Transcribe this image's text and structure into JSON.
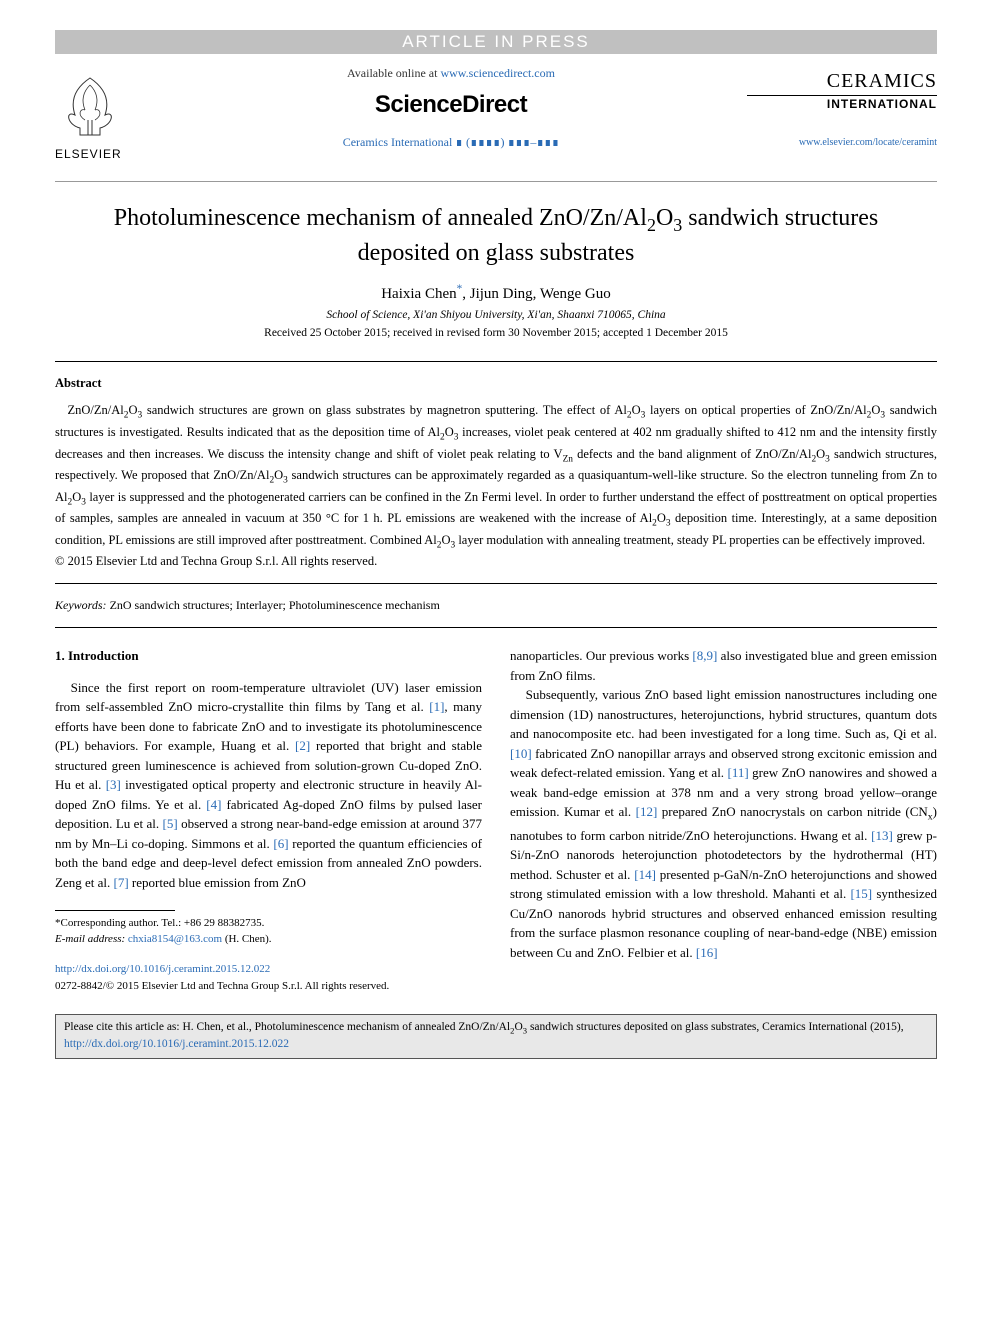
{
  "banner": {
    "text": "ARTICLE IN PRESS"
  },
  "header": {
    "available_prefix": "Available online at ",
    "available_url": "www.sciencedirect.com",
    "sd_logo": "ScienceDirect",
    "journal_ref_text": "Ceramics International ∎ (∎∎∎∎) ∎∎∎–∎∎∎",
    "elsevier_label": "ELSEVIER",
    "journal_title": "CERAMICS",
    "journal_subtitle": "INTERNATIONAL",
    "journal_homepage": "www.elsevier.com/locate/ceramint"
  },
  "article": {
    "title_html": "Photoluminescence mechanism of annealed ZnO/Zn/Al<sub>2</sub>O<sub>3</sub> sandwich structures deposited on glass substrates",
    "authors_html": "Haixia Chen<sup class=\"corr-star\">*</sup>, Jijun Ding, Wenge Guo",
    "affiliation": "School of Science, Xi'an Shiyou University, Xi'an, Shaanxi 710065, China",
    "dates": "Received 25 October 2015; received in revised form 30 November 2015; accepted 1 December 2015"
  },
  "abstract": {
    "heading": "Abstract",
    "body_html": "ZnO/Zn/Al<sub>2</sub>O<sub>3</sub> sandwich structures are grown on glass substrates by magnetron sputtering. The effect of Al<sub>2</sub>O<sub>3</sub> layers on optical properties of ZnO/Zn/Al<sub>2</sub>O<sub>3</sub> sandwich structures is investigated. Results indicated that as the deposition time of Al<sub>2</sub>O<sub>3</sub> increases, violet peak centered at 402 nm gradually shifted to 412 nm and the intensity firstly decreases and then increases. We discuss the intensity change and shift of violet peak relating to V<sub>Zn</sub> defects and the band alignment of ZnO/Zn/Al<sub>2</sub>O<sub>3</sub> sandwich structures, respectively. We proposed that ZnO/Zn/Al<sub>2</sub>O<sub>3</sub> sandwich structures can be approximately regarded as a quasiquantum-well-like structure. So the electron tunneling from Zn to Al<sub>2</sub>O<sub>3</sub> layer is suppressed and the photogenerated carriers can be confined in the Zn Fermi level. In order to further understand the effect of posttreatment on optical properties of samples, samples are annealed in vacuum at 350 °C for 1 h. PL emissions are weakened with the increase of Al<sub>2</sub>O<sub>3</sub> deposition time. Interestingly, at a same deposition condition, PL emissions are still improved after posttreatment. Combined Al<sub>2</sub>O<sub>3</sub> layer modulation with annealing treatment, steady PL properties can be effectively improved.",
    "copyright": "© 2015 Elsevier Ltd and Techna Group S.r.l. All rights reserved."
  },
  "keywords": {
    "label": "Keywords:",
    "text": " ZnO sandwich structures; Interlayer; Photoluminescence mechanism"
  },
  "body": {
    "section_heading": "1.  Introduction",
    "col1_html": "Since the first report on room-temperature ultraviolet (UV) laser emission from self-assembled ZnO micro-crystallite thin films by Tang et al. <span class=\"ref-link\">[1]</span>, many efforts have been done to fabricate ZnO and to investigate its photoluminescence (PL) behaviors. For example, Huang et al. <span class=\"ref-link\">[2]</span> reported that bright and stable structured green luminescence is achieved from solution-grown Cu-doped ZnO. Hu et al. <span class=\"ref-link\">[3]</span> investigated optical property and electronic structure in heavily Al-doped ZnO films. Ye et al. <span class=\"ref-link\">[4]</span> fabricated Ag-doped ZnO films by pulsed laser deposition. Lu et al. <span class=\"ref-link\">[5]</span> observed a strong near-band-edge emission at around 377 nm by Mn–Li co-doping. Simmons et al. <span class=\"ref-link\">[6]</span> reported the quantum efficiencies of both the band edge and deep-level defect emission from annealed ZnO powders. Zeng et al. <span class=\"ref-link\">[7]</span> reported blue emission from ZnO",
    "col2_top_html": "nanoparticles. Our previous works <span class=\"ref-link\">[8,9]</span> also investigated blue and green emission from ZnO films.",
    "col2_para2_html": "Subsequently, various ZnO based light emission nanostructures including one dimension (1D) nanostructures, heterojunctions, hybrid structures, quantum dots and nanocomposite etc. had been investigated for a long time. Such as, Qi et al. <span class=\"ref-link\">[10]</span> fabricated ZnO nanopillar arrays and observed strong excitonic emission and weak defect-related emission. Yang et al. <span class=\"ref-link\">[11]</span> grew ZnO nanowires and showed a weak band-edge emission at 378 nm and a very strong broad yellow–orange emission. Kumar et al. <span class=\"ref-link\">[12]</span> prepared ZnO nanocrystals on carbon nitride (CN<sub>x</sub>) nanotubes to form carbon nitride/ZnO heterojunctions. Hwang et al. <span class=\"ref-link\">[13]</span> grew p-Si/n-ZnO nanorods heterojunction photodetectors by the hydrothermal (HT) method. Schuster et al. <span class=\"ref-link\">[14]</span> presented p-GaN/n-ZnO heterojunctions and showed strong stimulated emission with a low threshold. Mahanti et al. <span class=\"ref-link\">[15]</span> synthesized Cu/ZnO nanorods hybrid structures and observed enhanced emission resulting from the surface plasmon resonance coupling of near-band-edge (NBE) emission between Cu and ZnO. Felbier et al. <span class=\"ref-link\">[16]</span>"
  },
  "footnote": {
    "corr_label": "*Corresponding author. Tel.: +86 29 88382735.",
    "email_label": "E-mail address: ",
    "email": "chxia8154@163.com",
    "email_suffix": " (H. Chen)."
  },
  "doi": {
    "url": "http://dx.doi.org/10.1016/j.ceramint.2015.12.022",
    "issn_line": "0272-8842/© 2015 Elsevier Ltd and Techna Group S.r.l. All rights reserved."
  },
  "citebox": {
    "text_prefix": "Please cite this article as: H. Chen, et al., Photoluminescence mechanism of annealed ZnO/Zn/Al",
    "text_mid": "O",
    "text_suffix": " sandwich structures deposited on glass substrates, Ceramics International (2015), ",
    "url": "http://dx.doi.org/10.1016/j.ceramint.2015.12.022"
  },
  "colors": {
    "link": "#2a6bb5",
    "banner_bg": "#c0c0c0",
    "citebox_bg": "#e8e8e8"
  }
}
